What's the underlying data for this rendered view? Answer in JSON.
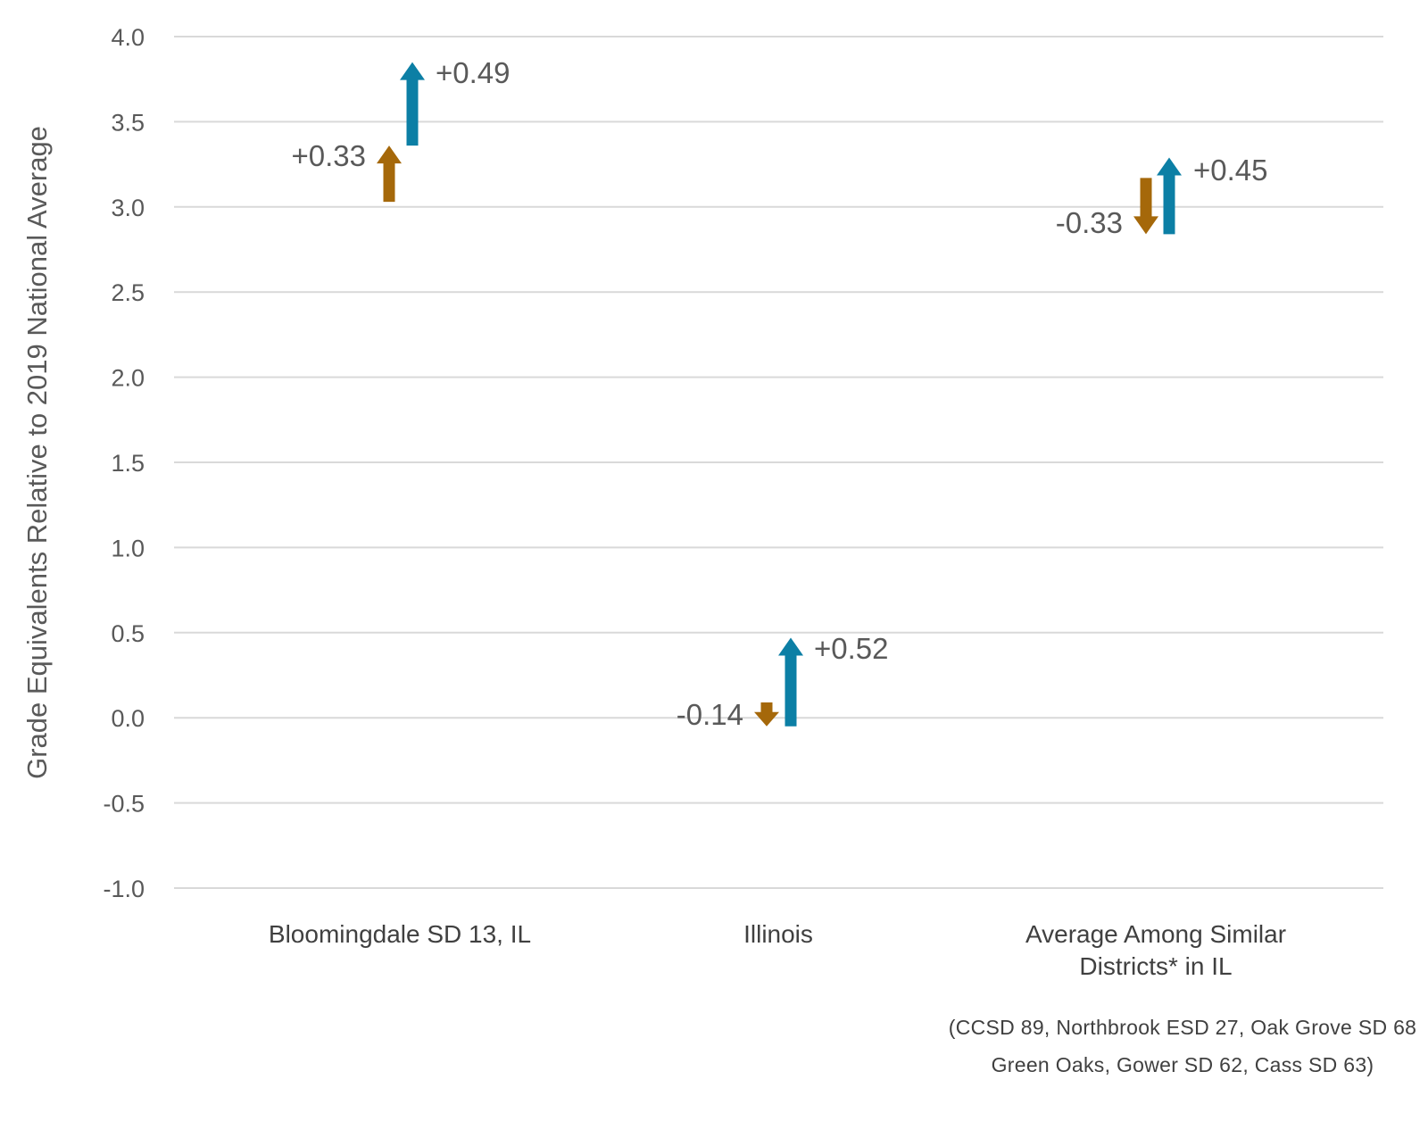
{
  "chart_data": {
    "type": "arrow",
    "ylabel": "Grade Equivalents Relative to 2019 National Average",
    "ylim": [
      -1.0,
      4.0
    ],
    "yticks": [
      "4.0",
      "3.5",
      "3.0",
      "2.5",
      "2.0",
      "1.5",
      "1.0",
      "0.5",
      "0.0",
      "-0.5",
      "-1.0"
    ],
    "grid": true,
    "categories": [
      [
        "Bloomingdale SD 13, IL"
      ],
      [
        "Illinois"
      ],
      [
        "Average Among Similar",
        "Districts* in IL"
      ]
    ],
    "series": [
      {
        "color": "#A5680A",
        "points": [
          {
            "start": 3.03,
            "end": 3.36,
            "label": "+0.33"
          },
          {
            "start": 0.09,
            "end": -0.05,
            "label": "-0.14"
          },
          {
            "start": 3.17,
            "end": 2.84,
            "label": "-0.33"
          }
        ]
      },
      {
        "color": "#0C7FA5",
        "points": [
          {
            "start": 3.36,
            "end": 3.85,
            "label": "+0.49"
          },
          {
            "start": -0.05,
            "end": 0.47,
            "label": "+0.52"
          },
          {
            "start": 2.84,
            "end": 3.29,
            "label": "+0.45"
          }
        ]
      }
    ],
    "footnote": "(CCSD 89, Northbrook ESD 27, Oak Grove SD 68 Green Oaks, Gower SD 62, Cass SD 63)"
  },
  "colors": {
    "grid": "#D9D9D9",
    "text": "#595959"
  }
}
